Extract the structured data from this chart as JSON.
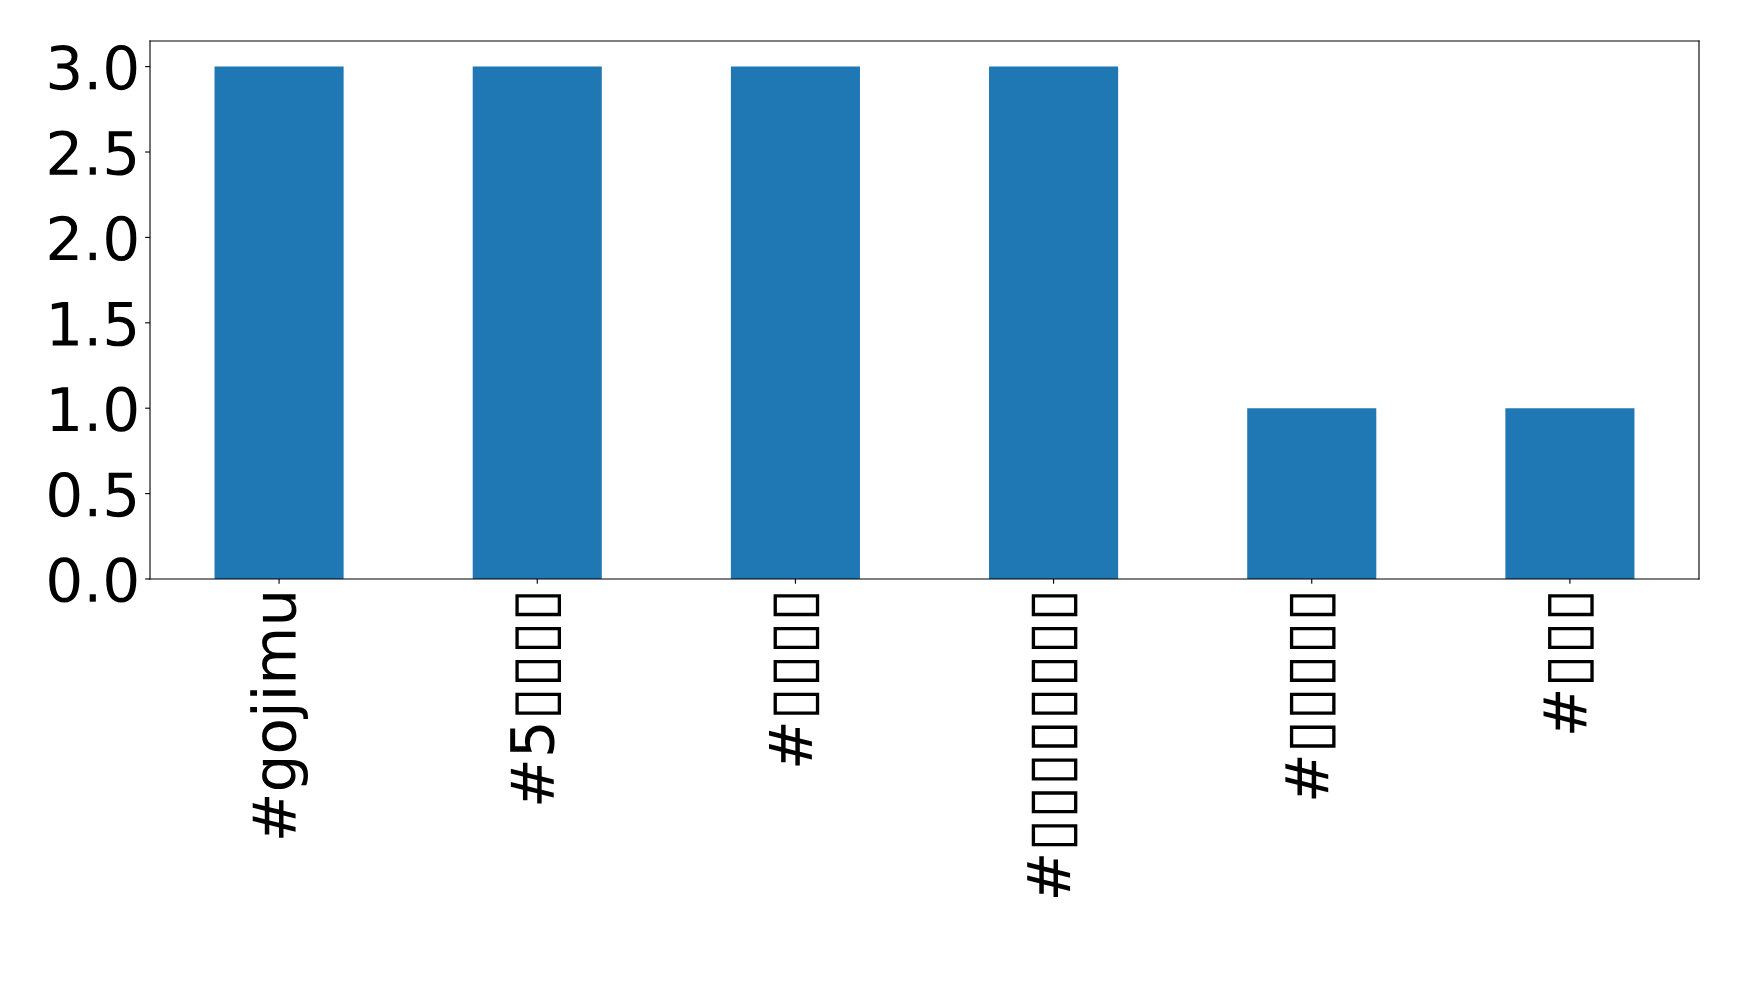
{
  "chart_data": {
    "type": "bar",
    "categories": [
      "#gojimu",
      "#5▯▯▯▯",
      "#▯▯▯▯",
      "#▯▯▯▯▯▯▯▯",
      "#▯▯▯▯▯",
      "#▯▯▯"
    ],
    "values": [
      3,
      3,
      3,
      3,
      1,
      1
    ],
    "color": "#1f77b4",
    "ylim": [
      0,
      3.15
    ],
    "yticks": [
      {
        "value": 0,
        "label": "0.0"
      },
      {
        "value": 0.5,
        "label": "0.5"
      },
      {
        "value": 1,
        "label": "1.0"
      },
      {
        "value": 1.5,
        "label": "1.5"
      },
      {
        "value": 2,
        "label": "2.0"
      },
      {
        "value": 2.5,
        "label": "2.5"
      },
      {
        "value": 3,
        "label": "3.0"
      }
    ],
    "grid": false
  }
}
